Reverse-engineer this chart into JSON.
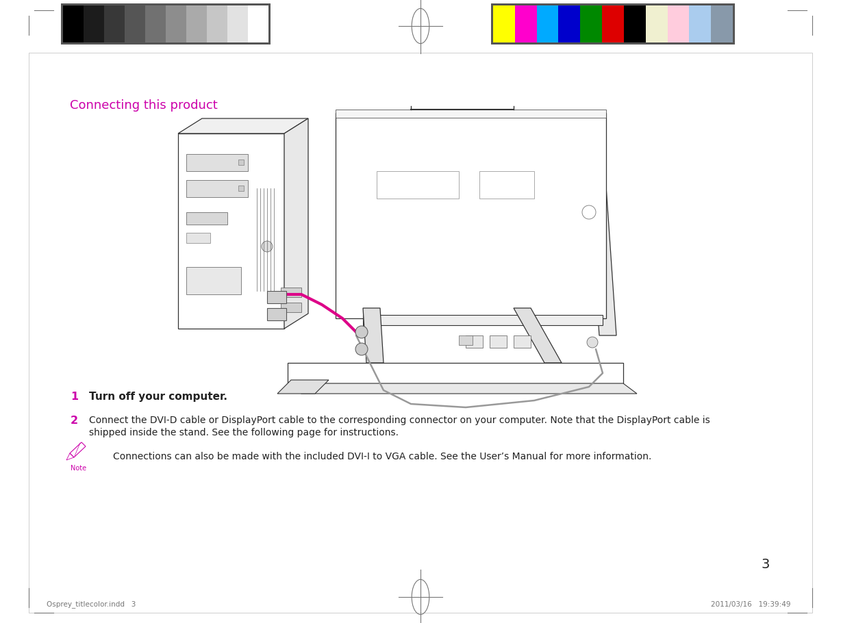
{
  "bg_color": "#ffffff",
  "title": "Connecting this product",
  "title_color": "#cc00aa",
  "title_fontsize": 13,
  "step1_num": "1",
  "step1_text": "Turn off your computer.",
  "step1_color": "#cc00aa",
  "step2_num": "2",
  "step2_text": "Connect the DVI-D cable or DisplayPort cable to the corresponding connector on your computer. Note that the DisplayPort cable is shipped inside the stand. See the following page for instructions.",
  "step2_color": "#cc00aa",
  "note_text": "Connections can also be made with the included DVI-I to VGA cable. See the User’s Manual for more information.",
  "page_num": "3",
  "footer_left": "Osprey_titlecolor.indd   3",
  "footer_right": "2011/03/16   19:39:49",
  "gray_swatches": [
    "#000000",
    "#1c1c1c",
    "#383838",
    "#555555",
    "#717171",
    "#8d8d8d",
    "#aaaaaa",
    "#c6c6c6",
    "#e2e2e2",
    "#ffffff"
  ],
  "color_swatches": [
    "#ffff00",
    "#ff00cc",
    "#00aaff",
    "#0000cc",
    "#008800",
    "#dd0000",
    "#000000",
    "#f0f0d0",
    "#ffccdd",
    "#aaccee",
    "#8899aa"
  ],
  "swatch_border_color": "#555555",
  "mark_color": "#777777"
}
